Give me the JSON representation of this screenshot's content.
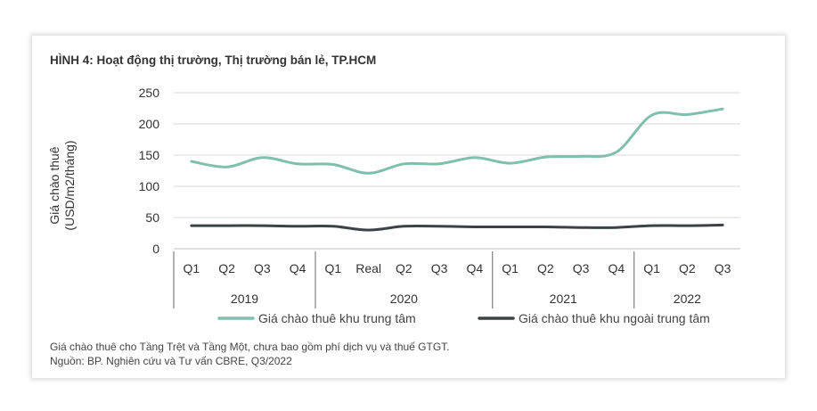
{
  "figure": {
    "title": "HÌNH 4: Hoạt động thị trường, Thị trường bán lẻ, TP.HCM",
    "note": "Giá chào thuê cho Tầng Trệt và Tầng Một, chưa bao gồm phí dịch vụ và thuế GTGT.",
    "source": "Nguồn: BP. Nghiên cứu và Tư vấn CBRE, Q3/2022"
  },
  "chart_data": {
    "type": "line",
    "ylabel_line1": "Giá chào thuê",
    "ylabel_line2": "(USD/m2/tháng)",
    "ylim": [
      0,
      250
    ],
    "yticks": [
      "0",
      "50",
      "100",
      "150",
      "200",
      "250"
    ],
    "grid": true,
    "legend_position": "bottom",
    "categories": [
      "Q1",
      "Q2",
      "Q3",
      "Q4",
      "Q1",
      "Real",
      "Q2",
      "Q3",
      "Q4",
      "Q1",
      "Q2",
      "Q3",
      "Q4",
      "Q1",
      "Q2",
      "Q3"
    ],
    "groups": [
      {
        "label": "2019",
        "count": 4
      },
      {
        "label": "2020",
        "count": 5
      },
      {
        "label": "2021",
        "count": 4
      },
      {
        "label": "2022",
        "count": 3
      }
    ],
    "series": [
      {
        "name": "Giá chào thuê khu trung tâm",
        "color": "#7fbfad",
        "values": [
          140,
          131,
          146,
          136,
          135,
          121,
          136,
          136,
          146,
          137,
          147,
          148,
          155,
          214,
          215,
          224
        ]
      },
      {
        "name": "Giá chào thuê khu ngoài trung tâm",
        "color": "#3b4444",
        "values": [
          37,
          37,
          37,
          36,
          36,
          30,
          36,
          36,
          35,
          35,
          35,
          34,
          34,
          37,
          37,
          38
        ]
      }
    ]
  }
}
